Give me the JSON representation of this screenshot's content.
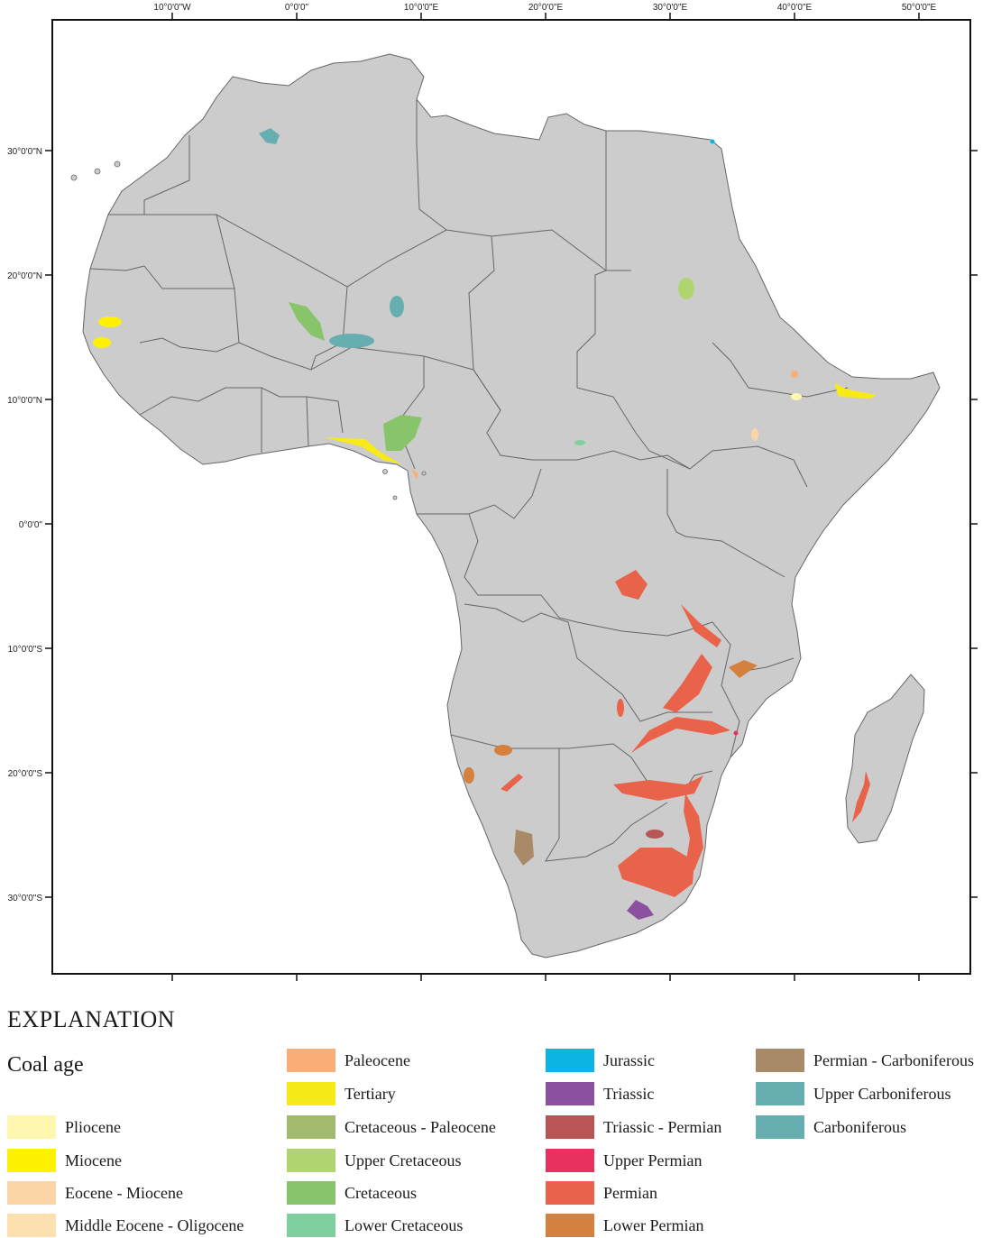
{
  "axes": {
    "top_ticks": [
      "10°0'0\"W",
      "0°0'0\"",
      "10°0'0\"E",
      "20°0'0\"E",
      "30°0'0\"E",
      "40°0'0\"E",
      "50°0'0\"E"
    ],
    "left_ticks": [
      "30°0'0\"N",
      "20°0'0\"N",
      "10°0'0\"N",
      "0°0'0\"",
      "10°0'0\"S",
      "20°0'0\"S",
      "30°0'0\"S"
    ]
  },
  "map": {
    "land_color": "#cccccc",
    "border_color": "#666666"
  },
  "legend": {
    "title": "EXPLANATION",
    "subtitle": "Coal age",
    "columns": [
      [
        {
          "label": "Pliocene",
          "color": "#fff7b0"
        },
        {
          "label": "Miocene",
          "color": "#fff200"
        },
        {
          "label": "Eocene - Miocene",
          "color": "#fbd5a5"
        },
        {
          "label": "Middle Eocene - Oligocene",
          "color": "#fde0b0"
        }
      ],
      [
        {
          "label": "Paleocene",
          "color": "#f9ae78"
        },
        {
          "label": "Tertiary",
          "color": "#f7ea17"
        },
        {
          "label": "Cretaceous - Paleocene",
          "color": "#a2ba6e"
        },
        {
          "label": "Upper Cretaceous",
          "color": "#afd470"
        },
        {
          "label": "Cretaceous",
          "color": "#88c46a"
        },
        {
          "label": "Lower Cretaceous",
          "color": "#7fd09e"
        }
      ],
      [
        {
          "label": "Jurassic",
          "color": "#0cb4e4"
        },
        {
          "label": "Triassic",
          "color": "#8c50a0"
        },
        {
          "label": "Triassic - Permian",
          "color": "#b85656"
        },
        {
          "label": "Upper Permian",
          "color": "#e8315f"
        },
        {
          "label": "Permian",
          "color": "#e8634a"
        },
        {
          "label": "Lower Permian",
          "color": "#d4803e"
        }
      ],
      [
        {
          "label": "Permian - Carboniferous",
          "color": "#a88a68"
        },
        {
          "label": "Upper Carboniferous",
          "color": "#67aeb0"
        },
        {
          "label": "Carboniferous",
          "color": "#67aeb0"
        }
      ]
    ]
  }
}
